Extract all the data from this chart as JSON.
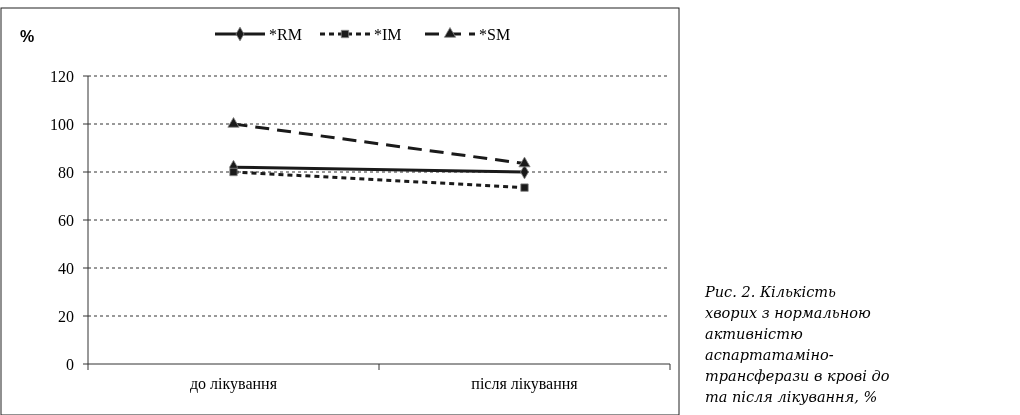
{
  "chart_data": {
    "type": "line",
    "ylabel": "%",
    "categories": [
      "до лікування",
      "після лікування"
    ],
    "series": [
      {
        "name": "*RM",
        "color": "#1a1a1a",
        "values": [
          82,
          80
        ],
        "marker": "diamond",
        "line_style": "solid"
      },
      {
        "name": "*IM",
        "color": "#1a1a1a",
        "values": [
          80,
          73.5
        ],
        "marker": "square",
        "line_style": "dotted"
      },
      {
        "name": "*SM",
        "color": "#1a1a1a",
        "values": [
          100,
          83.5
        ],
        "marker": "triangle",
        "line_style": "dashed"
      }
    ],
    "ylim": [
      0,
      120
    ],
    "yticks": [
      0,
      20,
      40,
      60,
      80,
      100,
      120
    ],
    "grid": "y",
    "legend": "top",
    "annotations": [
      "Рис. 2. Кількість хворих з нормальною активністю аспартатаміно- трансферази в крові до та після лікування, %"
    ]
  }
}
